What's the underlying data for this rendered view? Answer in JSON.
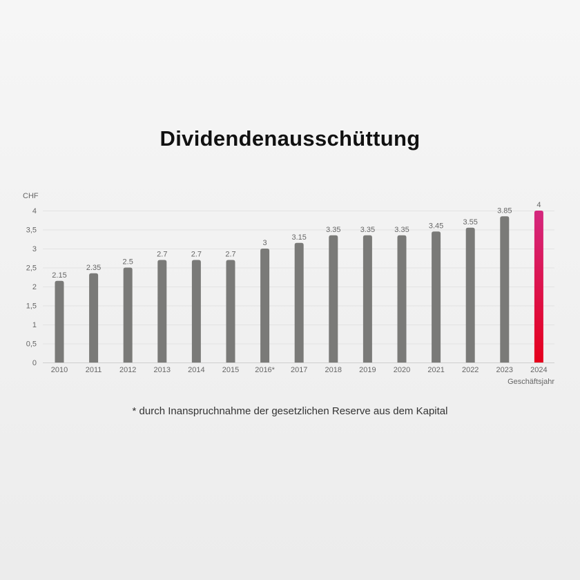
{
  "chart_data": {
    "type": "bar",
    "title": "Dividendenausschüttung",
    "ylabel": "CHF",
    "xlabel": "Geschäftsjahr",
    "ylim": [
      0,
      4
    ],
    "yticks": [
      "0",
      "0,5",
      "1",
      "1,5",
      "2",
      "2,5",
      "3",
      "3,5",
      "4"
    ],
    "grid": "y",
    "categories": [
      "2010",
      "2011",
      "2012",
      "2013",
      "2014",
      "2015",
      "2016*",
      "2017",
      "2018",
      "2019",
      "2020",
      "2021",
      "2022",
      "2023",
      "2024"
    ],
    "values": [
      2.15,
      2.35,
      2.5,
      2.7,
      2.7,
      2.7,
      3,
      3.15,
      3.35,
      3.35,
      3.35,
      3.45,
      3.55,
      3.85,
      4
    ],
    "value_labels": [
      "2.15",
      "2.35",
      "2.5",
      "2.7",
      "2.7",
      "2.7",
      "3",
      "3.15",
      "3.35",
      "3.35",
      "3.35",
      "3.45",
      "3.55",
      "3.85",
      "4"
    ],
    "colors": {
      "bar": "#7a7a78",
      "highlight_top": "#d4277e",
      "highlight_bottom": "#e5001c",
      "axis_text": "#666666",
      "gridline": "#e2e2e2"
    },
    "highlight_index": 14,
    "footnote": "* durch Inanspruchnahme der gesetzlichen Reserve aus dem Kapital"
  }
}
